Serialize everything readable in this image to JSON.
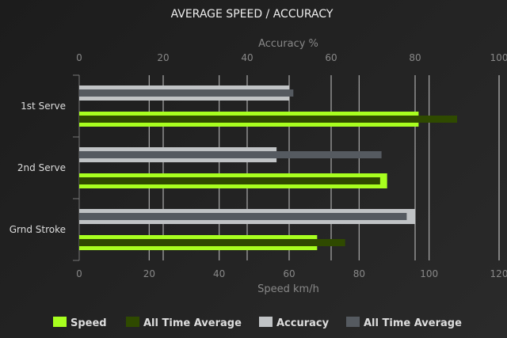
{
  "chart_data": {
    "type": "bar",
    "orientation": "horizontal",
    "title": "AVERAGE SPEED / ACCURACY",
    "categories": [
      "1st Serve",
      "2nd Serve",
      "Grnd Stroke"
    ],
    "top_axis": {
      "label": "Accuracy %",
      "range": [
        0,
        100
      ],
      "ticks": [
        0,
        20,
        40,
        60,
        80,
        100
      ]
    },
    "bottom_axis": {
      "label": "Speed km/h",
      "range": [
        0,
        120
      ],
      "ticks": [
        0,
        20,
        40,
        60,
        80,
        100,
        120
      ]
    },
    "grid": true,
    "legend_position": "bottom",
    "series": [
      {
        "name": "Speed",
        "axis": "bottom",
        "color": "#a8ff1f",
        "values": [
          97,
          88,
          68
        ]
      },
      {
        "name": "All Time Average",
        "axis": "bottom",
        "color": "#2f4a00",
        "values": [
          108,
          86,
          76
        ]
      },
      {
        "name": "Accuracy",
        "axis": "top",
        "color": "#c0c3c5",
        "values": [
          50,
          47,
          80
        ]
      },
      {
        "name": "All Time Average",
        "axis": "top",
        "color": "#555a60",
        "values": [
          51,
          72,
          78
        ]
      }
    ]
  }
}
